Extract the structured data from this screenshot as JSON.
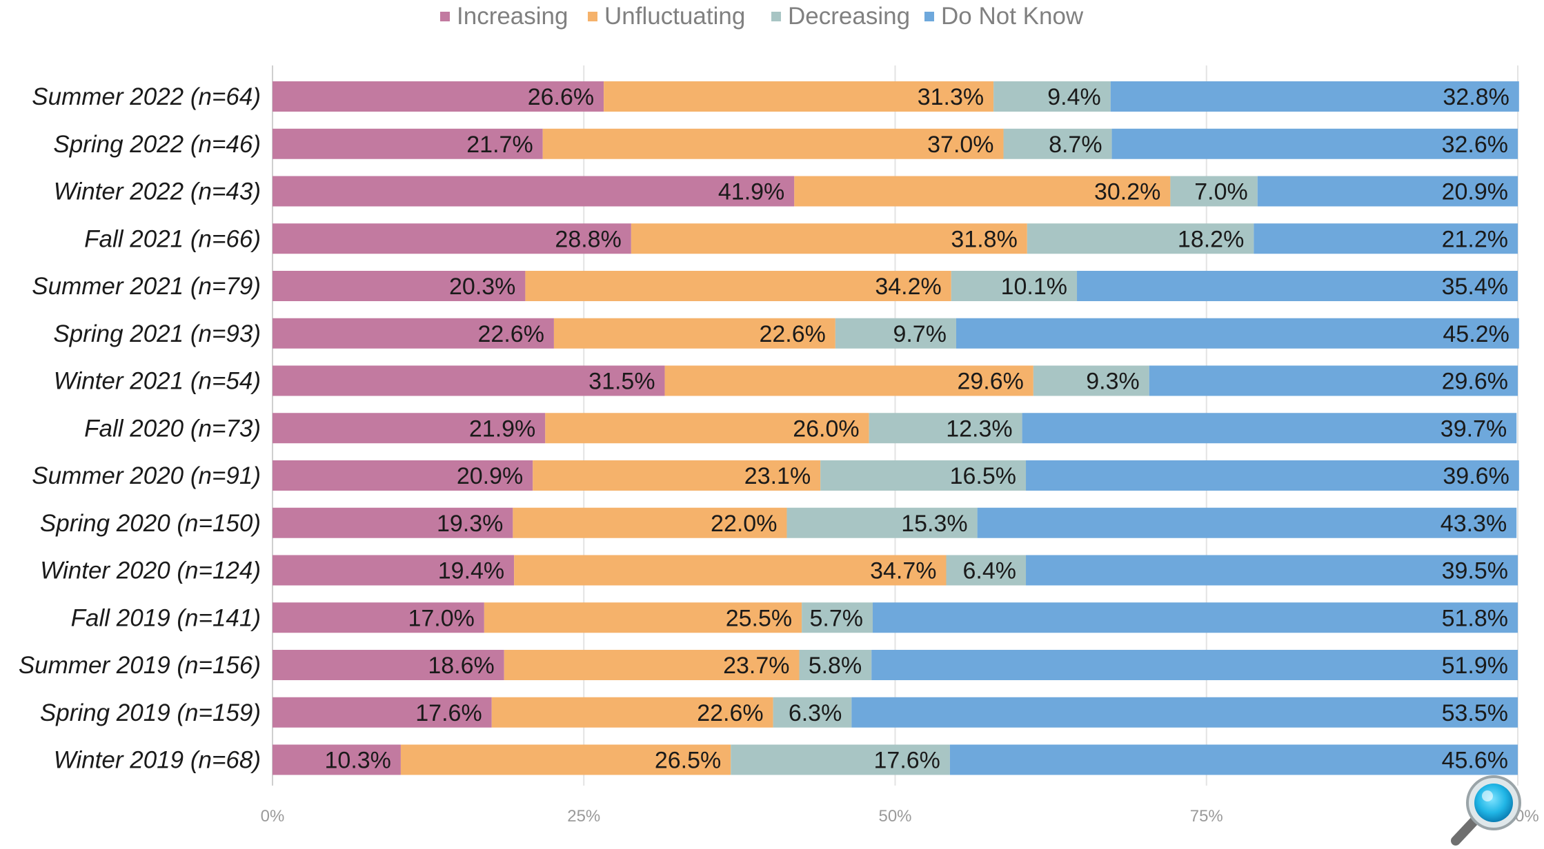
{
  "chart_data": {
    "type": "bar",
    "orientation": "horizontal",
    "stacked": true,
    "title": "",
    "xlabel": "",
    "ylabel": "",
    "xlim": [
      0,
      100
    ],
    "x_ticks": [
      "0%",
      "25%",
      "50%",
      "75%",
      "100%"
    ],
    "grid": true,
    "legend_position": "top-center",
    "categories": [
      "Summer 2022 (n=64)",
      "Spring 2022 (n=46)",
      "Winter 2022 (n=43)",
      "Fall 2021 (n=66)",
      "Summer 2021 (n=79)",
      "Spring 2021 (n=93)",
      "Winter 2021 (n=54)",
      "Fall 2020 (n=73)",
      "Summer 2020 (n=91)",
      "Spring 2020 (n=150)",
      "Winter 2020 (n=124)",
      "Fall 2019 (n=141)",
      "Summer 2019 (n=156)",
      "Spring 2019 (n=159)",
      "Winter 2019 (n=68)"
    ],
    "series": [
      {
        "name": "Increasing",
        "color": "#c27aa0",
        "values": [
          26.6,
          21.7,
          41.9,
          28.8,
          20.3,
          22.6,
          31.5,
          21.9,
          20.9,
          19.3,
          19.4,
          17.0,
          18.6,
          17.6,
          10.3
        ],
        "labels": [
          "26.6%",
          "21.7%",
          "41.9%",
          "28.8%",
          "20.3%",
          "22.6%",
          "31.5%",
          "21.9%",
          "20.9%",
          "19.3%",
          "19.4%",
          "17.0%",
          "18.6%",
          "17.6%",
          "10.3%"
        ]
      },
      {
        "name": "Unfluctuating",
        "color": "#f5b26b",
        "values": [
          31.3,
          37.0,
          30.2,
          31.8,
          34.2,
          22.6,
          29.6,
          26.0,
          23.1,
          22.0,
          34.7,
          25.5,
          23.7,
          22.6,
          26.5
        ],
        "labels": [
          "31.3%",
          "37.0%",
          "30.2%",
          "31.8%",
          "34.2%",
          "22.6%",
          "29.6%",
          "26.0%",
          "23.1%",
          "22.0%",
          "34.7%",
          "25.5%",
          "23.7%",
          "22.6%",
          "26.5%"
        ]
      },
      {
        "name": "Decreasing",
        "color": "#a8c5c4",
        "values": [
          9.4,
          8.7,
          7.0,
          18.2,
          10.1,
          9.7,
          9.3,
          12.3,
          16.5,
          15.3,
          6.4,
          5.7,
          5.8,
          6.3,
          17.6
        ],
        "labels": [
          "9.4%",
          "8.7%",
          "7.0%",
          "18.2%",
          "10.1%",
          "9.7%",
          "9.3%",
          "12.3%",
          "16.5%",
          "15.3%",
          "6.4%",
          "5.7%",
          "5.8%",
          "6.3%",
          "17.6%"
        ]
      },
      {
        "name": "Do Not Know",
        "color": "#6ea8dc",
        "values": [
          32.8,
          32.6,
          20.9,
          21.2,
          35.4,
          45.2,
          29.6,
          39.7,
          39.6,
          43.3,
          39.5,
          51.8,
          51.9,
          53.5,
          45.6
        ],
        "labels": [
          "32.8%",
          "32.6%",
          "20.9%",
          "21.2%",
          "35.4%",
          "45.2%",
          "29.6%",
          "39.7%",
          "39.6%",
          "43.3%",
          "39.5%",
          "51.8%",
          "51.9%",
          "53.5%",
          "45.6%"
        ]
      }
    ]
  },
  "icons": {
    "magnifier": "magnifier-icon"
  }
}
